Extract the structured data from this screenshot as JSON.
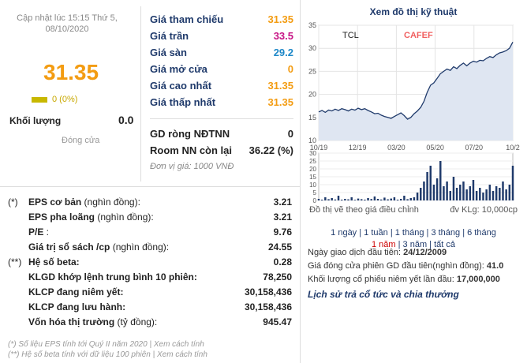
{
  "summary": {
    "updated": "Cập nhật lúc 15:15 Thứ 5, 08/10/2020",
    "price": "31.35",
    "change": "0 (0%)",
    "volume_label": "Khối lượng",
    "volume_value": "0.0",
    "status": "Đóng cửa",
    "colors": {
      "price": "#f39c12",
      "change": "#c8a800"
    }
  },
  "prices": {
    "rows": [
      {
        "label": "Giá tham chiếu",
        "value": "31.35",
        "color": "#f39c12"
      },
      {
        "label": "Giá trần",
        "value": "33.5",
        "color": "#c71585"
      },
      {
        "label": "Giá sàn",
        "value": "29.2",
        "color": "#1e88c8"
      },
      {
        "label": "Giá mở cửa",
        "value": "0",
        "color": "#f39c12"
      },
      {
        "label": "Giá cao nhất",
        "value": "31.35",
        "color": "#f39c12"
      },
      {
        "label": "Giá thấp nhất",
        "value": "31.35",
        "color": "#f39c12"
      }
    ],
    "foreign": [
      {
        "label": "GD ròng NĐTNN",
        "value": "0"
      },
      {
        "label": "Room NN còn lại",
        "value": "36.22 (%)"
      }
    ],
    "unit": "Đơn vị giá: 1000 VNĐ"
  },
  "fundamentals": {
    "rows": [
      {
        "mark": "(*)",
        "label": "EPS cơ bản",
        "suffix": " (nghìn đồng):",
        "value": "3.21"
      },
      {
        "mark": "",
        "label": "EPS pha loãng",
        "suffix": " (nghìn đồng):",
        "value": "3.21"
      },
      {
        "mark": "",
        "label": "P/E",
        "suffix": " :",
        "value": "9.76"
      },
      {
        "mark": "",
        "label": "Giá trị sổ sách /cp",
        "suffix": " (nghìn đồng):",
        "value": "24.55"
      },
      {
        "mark": "(**)",
        "label": "Hệ số beta:",
        "suffix": "",
        "value": "0.28"
      },
      {
        "mark": "",
        "label": "KLGD khớp lệnh trung bình 10 phiên:",
        "suffix": "",
        "value": "78,250"
      },
      {
        "mark": "",
        "label": "KLCP đang niêm yết:",
        "suffix": "",
        "value": "30,158,436"
      },
      {
        "mark": "",
        "label": "KLCP đang lưu hành:",
        "suffix": "",
        "value": "30,158,436"
      },
      {
        "mark": "",
        "label": "Vốn hóa thị trường",
        "suffix": " (tỷ đồng):",
        "value": "945.47"
      }
    ],
    "note1": "(*) Số liệu EPS tính tới Quý II năm 2020 | Xem cách tính",
    "note2": "(**) Hệ số beta tính với dữ liệu 100 phiên | Xem cách tính"
  },
  "chart": {
    "title": "Xem đồ thị kỹ thuật",
    "ticker": "TCL",
    "watermark": "CAFEF",
    "note_left": "Đồ thị vẽ theo giá điều chỉnh",
    "note_right": "đv KLg: 10,000cp",
    "ranges": [
      "1 ngày",
      "1 tuần",
      "1 tháng",
      "3 tháng",
      "6 tháng"
    ],
    "ranges2": [
      "1 năm",
      "3 năm",
      "tất cả"
    ],
    "active_range": "1 năm"
  },
  "chart_data": {
    "type": "line",
    "x_ticks": [
      "10/19",
      "12/19",
      "03/20",
      "05/20",
      "07/20",
      "10/2"
    ],
    "y_ticks": [
      10,
      15,
      20,
      25,
      30,
      35
    ],
    "ylim": [
      10,
      35
    ],
    "price": [
      16.2,
      16.5,
      16.1,
      16.6,
      16.4,
      16.8,
      16.5,
      16.9,
      16.7,
      16.4,
      16.8,
      16.6,
      17.0,
      16.7,
      16.9,
      16.5,
      16.2,
      15.8,
      15.9,
      15.5,
      15.2,
      15.0,
      14.8,
      15.2,
      15.6,
      16.0,
      15.4,
      14.6,
      15.0,
      15.8,
      16.4,
      17.2,
      18.5,
      20.5,
      22.0,
      22.5,
      23.5,
      24.5,
      25.0,
      25.5,
      25.2,
      26.0,
      25.6,
      26.3,
      26.8,
      26.2,
      26.8,
      27.2,
      27.0,
      27.4,
      27.3,
      27.8,
      28.2,
      28.0,
      28.6,
      29.0,
      29.2,
      29.5,
      30.0,
      31.35
    ],
    "vol_ticks": [
      0,
      5,
      10,
      15,
      20,
      25,
      30
    ],
    "vol_ylim": [
      0,
      30
    ],
    "volume": [
      1,
      0.5,
      2,
      0.8,
      1.5,
      0.6,
      3,
      0.5,
      1,
      0.7,
      2,
      0.4,
      1.2,
      0.8,
      0.5,
      1.5,
      0.9,
      2.5,
      1,
      0.6,
      1.8,
      0.7,
      1.2,
      2,
      0.5,
      1,
      3,
      0.8,
      1.5,
      2,
      5,
      8,
      12,
      18,
      22,
      10,
      14,
      25,
      9,
      12,
      6,
      15,
      8,
      10,
      12,
      7,
      9,
      13,
      6,
      8,
      5,
      7,
      10,
      6,
      9,
      8,
      12,
      7,
      10,
      22
    ]
  }
}
